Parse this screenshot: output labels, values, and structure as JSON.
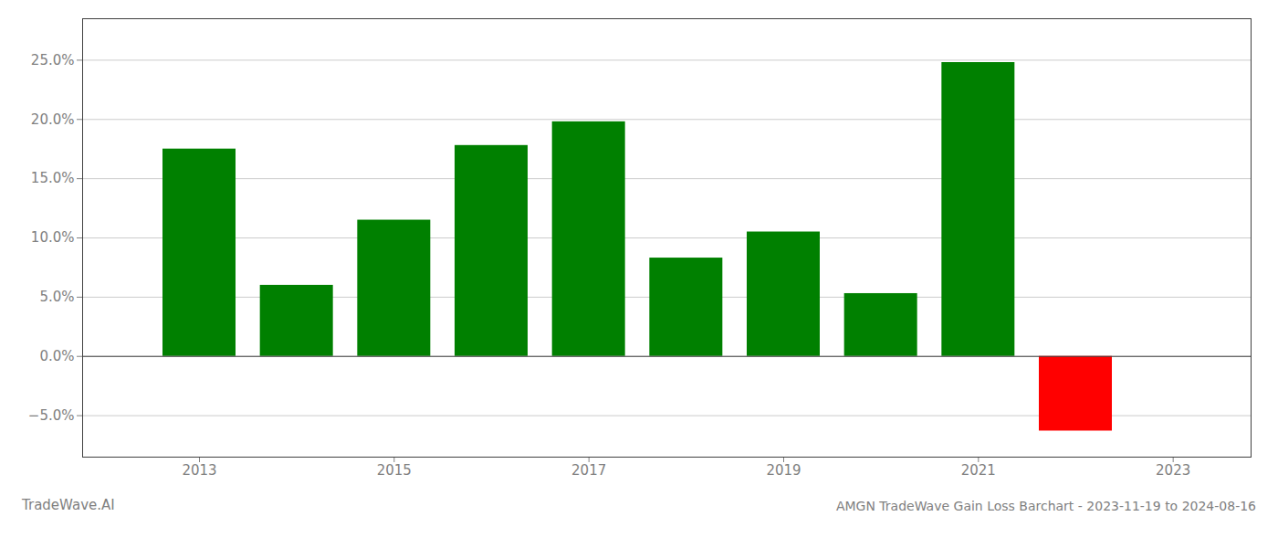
{
  "chart_data": {
    "type": "bar",
    "title": "AMGN TradeWave Gain Loss Barchart - 2023-11-19 to 2024-08-16",
    "annotations": [
      "TradeWave.AI"
    ],
    "x": [
      2013,
      2014,
      2015,
      2016,
      2017,
      2018,
      2019,
      2020,
      2021,
      2022
    ],
    "values": [
      0.175,
      0.06,
      0.115,
      0.178,
      0.198,
      0.083,
      0.105,
      0.053,
      0.248,
      -0.063
    ],
    "colors": [
      "#008000",
      "#008000",
      "#008000",
      "#008000",
      "#008000",
      "#008000",
      "#008000",
      "#008000",
      "#008000",
      "#ff0000"
    ],
    "xlim": [
      2011.8,
      2023.8
    ],
    "xticks": [
      2013,
      2015,
      2017,
      2019,
      2021,
      2023
    ],
    "ylim": [
      -0.085,
      0.285
    ],
    "yticks": [
      {
        "value": -0.05,
        "label": "−5.0%"
      },
      {
        "value": 0.0,
        "label": "0.0%"
      },
      {
        "value": 0.05,
        "label": "5.0%"
      },
      {
        "value": 0.1,
        "label": "10.0%"
      },
      {
        "value": 0.15,
        "label": "15.0%"
      },
      {
        "value": 0.2,
        "label": "20.0%"
      },
      {
        "value": 0.25,
        "label": "25.0%"
      }
    ],
    "grid": true
  }
}
